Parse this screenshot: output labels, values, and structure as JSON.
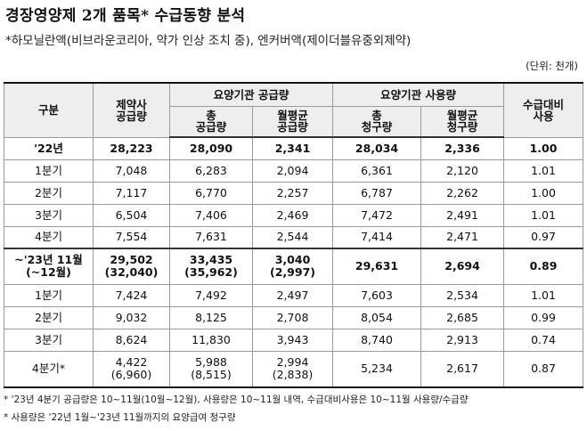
{
  "title": "경장영양제 2개 품목* 수급동향 분석",
  "subtitle": "*하모닐란액(비브라운코리아, 약가 인상 조치 중), 엔커버액(제이더블유중외제약)",
  "unit": "(단위: 천개)",
  "headers": {
    "category": "구분",
    "supply": [
      "제약사",
      "공급량"
    ],
    "institution_supply": "요양기관 공급량",
    "total_supply": [
      "총",
      "공급량"
    ],
    "monthly_supply": [
      "월평균",
      "공급량"
    ],
    "institution_usage": "요양기관 사용량",
    "total_claim": [
      "총",
      "청구량"
    ],
    "monthly_claim": [
      "월평균",
      "청구량"
    ],
    "ratio": [
      "수급대비",
      "사용"
    ]
  },
  "rows": [
    {
      "label": [
        "'22년"
      ],
      "supply": [
        "28,223"
      ],
      "inst_total": [
        "28,090"
      ],
      "inst_monthly": [
        "2,341"
      ],
      "use_total": [
        "28,034"
      ],
      "use_monthly": [
        "2,336"
      ],
      "ratio": [
        "1.00"
      ]
    },
    {
      "label": [
        "1분기"
      ],
      "supply": [
        "7,048"
      ],
      "inst_total": [
        "6,283"
      ],
      "inst_monthly": [
        "2,094"
      ],
      "use_total": [
        "6,361"
      ],
      "use_monthly": [
        "2,120"
      ],
      "ratio": [
        "1.01"
      ]
    },
    {
      "label": [
        "2분기"
      ],
      "supply": [
        "7,117"
      ],
      "inst_total": [
        "6,770"
      ],
      "inst_monthly": [
        "2,257"
      ],
      "use_total": [
        "6,787"
      ],
      "use_monthly": [
        "2,262"
      ],
      "ratio": [
        "1.00"
      ]
    },
    {
      "label": [
        "3분기"
      ],
      "supply": [
        "6,504"
      ],
      "inst_total": [
        "7,406"
      ],
      "inst_monthly": [
        "2,469"
      ],
      "use_total": [
        "7,472"
      ],
      "use_monthly": [
        "2,491"
      ],
      "ratio": [
        "1.01"
      ]
    },
    {
      "label": [
        "4분기"
      ],
      "supply": [
        "7,554"
      ],
      "inst_total": [
        "7,631"
      ],
      "inst_monthly": [
        "2,544"
      ],
      "use_total": [
        "7,414"
      ],
      "use_monthly": [
        "2,471"
      ],
      "ratio": [
        "0.97"
      ]
    },
    {
      "label": [
        "~'23년 11월",
        "(~12월)"
      ],
      "supply": [
        "29,502",
        "(32,040)"
      ],
      "inst_total": [
        "33,435",
        "(35,962)"
      ],
      "inst_monthly": [
        "3,040",
        "(2,997)"
      ],
      "use_total": [
        "29,631"
      ],
      "use_monthly": [
        "2,694"
      ],
      "ratio": [
        "0.89"
      ]
    },
    {
      "label": [
        "1분기"
      ],
      "supply": [
        "7,424"
      ],
      "inst_total": [
        "7,492"
      ],
      "inst_monthly": [
        "2,497"
      ],
      "use_total": [
        "7,603"
      ],
      "use_monthly": [
        "2,534"
      ],
      "ratio": [
        "1.01"
      ]
    },
    {
      "label": [
        "2분기"
      ],
      "supply": [
        "9,032"
      ],
      "inst_total": [
        "8,125"
      ],
      "inst_monthly": [
        "2,708"
      ],
      "use_total": [
        "8,054"
      ],
      "use_monthly": [
        "2,685"
      ],
      "ratio": [
        "0.99"
      ]
    },
    {
      "label": [
        "3분기"
      ],
      "supply": [
        "8,624"
      ],
      "inst_total": [
        "11,830"
      ],
      "inst_monthly": [
        "3,943"
      ],
      "use_total": [
        "8,740"
      ],
      "use_monthly": [
        "2,913"
      ],
      "ratio": [
        "0.74"
      ]
    },
    {
      "label": [
        "4분기*"
      ],
      "supply": [
        "4,422",
        "(6,960)"
      ],
      "inst_total": [
        "5,988",
        "(8,515)"
      ],
      "inst_monthly": [
        "2,994",
        "(2,838)"
      ],
      "use_total": [
        "5,234"
      ],
      "use_monthly": [
        "2,617"
      ],
      "ratio": [
        "0.87"
      ]
    }
  ],
  "notes": [
    "* '23년 4분기 공급량은 10~11월(10월~12월), 사용량은 10~11월 내역, 수급대비사용은 10~11월 사용량/수급량",
    "* 사용량은 '22년 1월~'23년 11월까지의 요양급여 청구량"
  ]
}
